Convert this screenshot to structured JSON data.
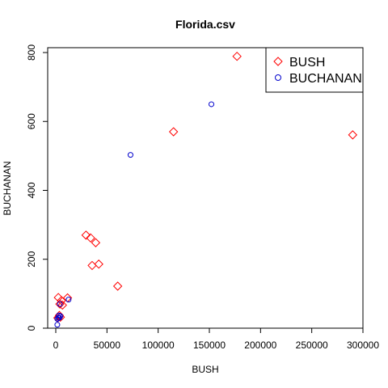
{
  "chart_data": {
    "type": "scatter",
    "title": "Florida.csv",
    "xlabel": "BUSH",
    "ylabel": "BUCHANAN",
    "xlim": [
      0,
      300000
    ],
    "ylim": [
      0,
      800
    ],
    "xticks": [
      0,
      50000,
      100000,
      150000,
      200000,
      250000,
      300000
    ],
    "yticks": [
      0,
      200,
      400,
      600,
      800
    ],
    "legend_position": "top-right",
    "grid": false,
    "series": [
      {
        "name": "BUSH",
        "marker": "diamond",
        "color": "#ff0000",
        "points": [
          {
            "x": 177000,
            "y": 789
          },
          {
            "x": 290000,
            "y": 561
          },
          {
            "x": 115000,
            "y": 570
          },
          {
            "x": 29500,
            "y": 270
          },
          {
            "x": 34000,
            "y": 262
          },
          {
            "x": 39000,
            "y": 248
          },
          {
            "x": 42000,
            "y": 186
          },
          {
            "x": 35500,
            "y": 182
          },
          {
            "x": 60500,
            "y": 122
          },
          {
            "x": 2500,
            "y": 89
          },
          {
            "x": 5500,
            "y": 80
          },
          {
            "x": 11500,
            "y": 88
          },
          {
            "x": 4000,
            "y": 70
          },
          {
            "x": 6500,
            "y": 67
          },
          {
            "x": 3500,
            "y": 37
          },
          {
            "x": 2000,
            "y": 30
          },
          {
            "x": 4500,
            "y": 32
          }
        ]
      },
      {
        "name": "BUCHANAN",
        "marker": "circle",
        "color": "#0000cc",
        "points": [
          {
            "x": 152000,
            "y": 650
          },
          {
            "x": 73000,
            "y": 503
          },
          {
            "x": 12500,
            "y": 83
          },
          {
            "x": 4000,
            "y": 70
          },
          {
            "x": 3000,
            "y": 37
          },
          {
            "x": 4500,
            "y": 35
          },
          {
            "x": 2500,
            "y": 30
          },
          {
            "x": 1500,
            "y": 27
          },
          {
            "x": 3500,
            "y": 30
          },
          {
            "x": 1500,
            "y": 10
          }
        ]
      }
    ]
  }
}
